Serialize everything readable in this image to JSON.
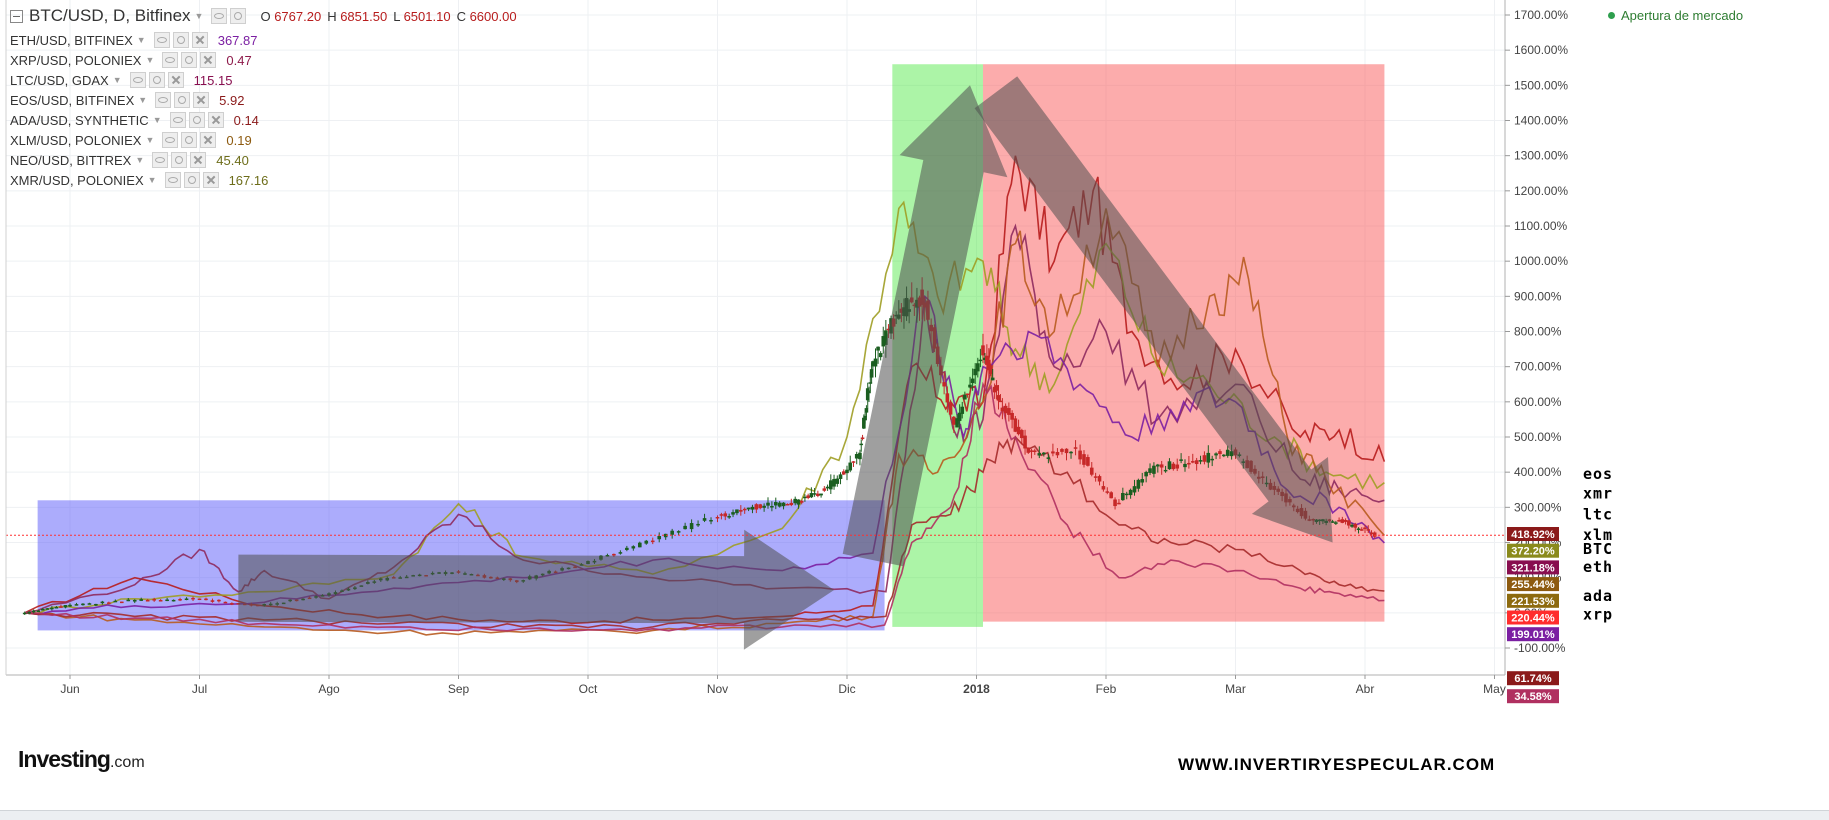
{
  "legend": {
    "main": {
      "symbol": "BTC/USD, D, Bitfinex",
      "ohlc": [
        {
          "k": "O",
          "v": "6767.20"
        },
        {
          "k": "H",
          "v": "6851.50"
        },
        {
          "k": "L",
          "v": "6501.10"
        },
        {
          "k": "C",
          "v": "6600.00"
        }
      ]
    },
    "compare": [
      {
        "symbol": "ETH/USD, BITFINEX",
        "value": "367.87",
        "color": "#7b1fa2"
      },
      {
        "symbol": "XRP/USD, POLONIEX",
        "value": "0.47",
        "color": "#8e1a4a"
      },
      {
        "symbol": "LTC/USD, GDAX",
        "value": "115.15",
        "color": "#880e4f"
      },
      {
        "symbol": "EOS/USD, BITFINEX",
        "value": "5.92",
        "color": "#8b1a1a"
      },
      {
        "symbol": "ADA/USD, SYNTHETIC",
        "value": "0.14",
        "color": "#8b1a1a"
      },
      {
        "symbol": "XLM/USD, POLONIEX",
        "value": "0.19",
        "color": "#8d5a0f"
      },
      {
        "symbol": "NEO/USD, BITTREX",
        "value": "45.40",
        "color": "#6d6d1a"
      },
      {
        "symbol": "XMR/USD, POLONIEX",
        "value": "167.16",
        "color": "#6d6d1a"
      }
    ]
  },
  "market_status": "Apertura de mercado",
  "logo": {
    "main": "Investing",
    "suffix": ".com"
  },
  "watermark": "WWW.INVERTIRYESPECULAR.COM",
  "chart_data": {
    "type": "line",
    "title": "BTC/USD, D, Bitfinex",
    "y_axis": {
      "min": -100,
      "max": 1700,
      "step": 100,
      "unit": "%",
      "side": "right"
    },
    "x_axis": {
      "labels": [
        "Jun",
        "Jul",
        "Ago",
        "Sep",
        "Oct",
        "Nov",
        "Dic",
        "2018",
        "Feb",
        "Mar",
        "Abr",
        "May"
      ]
    },
    "x_start": 0,
    "x_end": 11.3,
    "grid": true,
    "current_price_line": 220.44,
    "colors": {
      "btc_up": "#1b5e20",
      "btc_down": "#c62828",
      "zone_consolidation": "rgba(90,90,250,0.5)",
      "zone_bull": "rgba(70,230,60,0.45)",
      "zone_bear": "rgba(250,90,90,0.5)",
      "arrows": "rgba(80,80,80,0.55)"
    },
    "zones": [
      {
        "name": "consolidation",
        "x0": -0.25,
        "x1": 6.29,
        "y0": -50,
        "y1": 320
      },
      {
        "name": "bull",
        "x0": 6.35,
        "x1": 7.05,
        "y0": -40,
        "y1": 1560
      },
      {
        "name": "bear",
        "x0": 7.05,
        "x1": 10.15,
        "y0": -25,
        "y1": 1560
      }
    ],
    "arrows": [
      {
        "from": [
          1.3,
          70
        ],
        "to": [
          5.9,
          65
        ],
        "width": 120
      },
      {
        "from": [
          6.2,
          150
        ],
        "to": [
          6.95,
          1500
        ],
        "width": 110
      },
      {
        "from": [
          7.15,
          1480
        ],
        "to": [
          9.75,
          200
        ],
        "width": 95
      }
    ],
    "btc_candles": [
      {
        "x": -0.35,
        "close": 0
      },
      {
        "x": 0,
        "close": 20
      },
      {
        "x": 0.5,
        "close": 35
      },
      {
        "x": 1,
        "close": 40
      },
      {
        "x": 1.5,
        "close": 20
      },
      {
        "x": 2,
        "close": 50
      },
      {
        "x": 2.5,
        "close": 100
      },
      {
        "x": 3,
        "close": 115
      },
      {
        "x": 3.5,
        "close": 90
      },
      {
        "x": 4,
        "close": 140
      },
      {
        "x": 4.5,
        "close": 200
      },
      {
        "x": 5,
        "close": 270
      },
      {
        "x": 5.3,
        "close": 300
      },
      {
        "x": 5.6,
        "close": 310
      },
      {
        "x": 5.85,
        "close": 350
      },
      {
        "x": 6.1,
        "close": 440
      },
      {
        "x": 6.2,
        "close": 700
      },
      {
        "x": 6.4,
        "close": 850
      },
      {
        "x": 6.6,
        "close": 900
      },
      {
        "x": 6.85,
        "close": 530
      },
      {
        "x": 7.05,
        "close": 740
      },
      {
        "x": 7.2,
        "close": 600
      },
      {
        "x": 7.45,
        "close": 450
      },
      {
        "x": 7.8,
        "close": 460
      },
      {
        "x": 8.1,
        "close": 310
      },
      {
        "x": 8.4,
        "close": 410
      },
      {
        "x": 8.7,
        "close": 430
      },
      {
        "x": 9,
        "close": 460
      },
      {
        "x": 9.3,
        "close": 360
      },
      {
        "x": 9.6,
        "close": 260
      },
      {
        "x": 9.85,
        "close": 260
      },
      {
        "x": 10.1,
        "close": 220
      }
    ],
    "series": [
      {
        "label": "eos",
        "color": "#b71c1c",
        "last": 418.92,
        "label_y": 395,
        "points": [
          [
            -0.35,
            0
          ],
          [
            0.5,
            100
          ],
          [
            1.5,
            20
          ],
          [
            2.5,
            -10
          ],
          [
            3.5,
            -25
          ],
          [
            4.5,
            -20
          ],
          [
            5.5,
            -10
          ],
          [
            6.2,
            20
          ],
          [
            6.5,
            700
          ],
          [
            6.8,
            600
          ],
          [
            7.05,
            600
          ],
          [
            7.3,
            1300
          ],
          [
            7.6,
            1000
          ],
          [
            7.9,
            1200
          ],
          [
            8.2,
            800
          ],
          [
            8.6,
            650
          ],
          [
            9,
            750
          ],
          [
            9.5,
            500
          ],
          [
            9.8,
            520
          ],
          [
            10.15,
            430
          ]
        ]
      },
      {
        "label": "xmr",
        "color": "#9e9d24",
        "last": 372.2,
        "label_y": 340,
        "points": [
          [
            -0.35,
            0
          ],
          [
            0.5,
            40
          ],
          [
            1.5,
            60
          ],
          [
            2.5,
            110
          ],
          [
            3,
            310
          ],
          [
            3.5,
            160
          ],
          [
            4.5,
            110
          ],
          [
            5.5,
            240
          ],
          [
            6,
            500
          ],
          [
            6.4,
            1150
          ],
          [
            6.7,
            900
          ],
          [
            7.05,
            1000
          ],
          [
            7.3,
            750
          ],
          [
            7.6,
            650
          ],
          [
            8,
            1050
          ],
          [
            8.4,
            700
          ],
          [
            8.8,
            650
          ],
          [
            9.3,
            500
          ],
          [
            9.7,
            400
          ],
          [
            10.15,
            370
          ]
        ]
      },
      {
        "label": "ltc",
        "color": "#8e2a5e",
        "last": 321.18,
        "label_y": 280,
        "points": [
          [
            -0.35,
            0
          ],
          [
            0.5,
            80
          ],
          [
            1,
            180
          ],
          [
            1.3,
            60
          ],
          [
            1.5,
            120
          ],
          [
            2,
            40
          ],
          [
            2.5,
            130
          ],
          [
            3,
            280
          ],
          [
            3.5,
            150
          ],
          [
            4.5,
            100
          ],
          [
            5.5,
            70
          ],
          [
            6.3,
            60
          ],
          [
            6.6,
            900
          ],
          [
            6.85,
            500
          ],
          [
            7.05,
            550
          ],
          [
            7.3,
            1100
          ],
          [
            7.6,
            700
          ],
          [
            8,
            800
          ],
          [
            8.4,
            550
          ],
          [
            9,
            650
          ],
          [
            9.5,
            380
          ],
          [
            9.8,
            350
          ],
          [
            10.15,
            320
          ]
        ]
      },
      {
        "label": "xlm",
        "color": "#b85b1f",
        "last": 221.53,
        "label_y": 222,
        "points": [
          [
            -0.35,
            0
          ],
          [
            0.5,
            -20
          ],
          [
            1.5,
            -40
          ],
          [
            2.5,
            -55
          ],
          [
            3.5,
            -55
          ],
          [
            4.5,
            -50
          ],
          [
            5.5,
            -30
          ],
          [
            6.2,
            -10
          ],
          [
            6.4,
            450
          ],
          [
            6.7,
            400
          ],
          [
            7.05,
            600
          ],
          [
            7.3,
            1050
          ],
          [
            7.6,
            800
          ],
          [
            8,
            1150
          ],
          [
            8.4,
            700
          ],
          [
            8.8,
            900
          ],
          [
            9.1,
            950
          ],
          [
            9.4,
            500
          ],
          [
            9.7,
            380
          ],
          [
            10.15,
            220
          ]
        ]
      },
      {
        "label": "BTC",
        "color": "#555555",
        "last": 220.44,
        "label_y": 182,
        "points": [
          [
            -0.35,
            0
          ],
          [
            0.5,
            30
          ],
          [
            1.5,
            20
          ],
          [
            2.5,
            100
          ],
          [
            3.5,
            100
          ],
          [
            4.5,
            200
          ],
          [
            5.5,
            310
          ],
          [
            6.1,
            440
          ],
          [
            6.4,
            850
          ],
          [
            6.85,
            530
          ],
          [
            7.05,
            740
          ],
          [
            7.45,
            450
          ],
          [
            8.1,
            310
          ],
          [
            8.7,
            430
          ],
          [
            9.3,
            360
          ],
          [
            9.85,
            260
          ],
          [
            10.15,
            220
          ]
        ]
      },
      {
        "label": "eth",
        "color": "#7b1fa2",
        "last": 199.01,
        "label_y": 130,
        "points": [
          [
            -0.35,
            0
          ],
          [
            0.5,
            20
          ],
          [
            1.5,
            30
          ],
          [
            2.5,
            70
          ],
          [
            3.5,
            100
          ],
          [
            4.5,
            150
          ],
          [
            5.5,
            120
          ],
          [
            6.2,
            170
          ],
          [
            6.6,
            900
          ],
          [
            6.9,
            500
          ],
          [
            7.05,
            700
          ],
          [
            7.4,
            800
          ],
          [
            7.8,
            650
          ],
          [
            8.2,
            500
          ],
          [
            8.6,
            600
          ],
          [
            9,
            600
          ],
          [
            9.4,
            350
          ],
          [
            9.8,
            300
          ],
          [
            10.15,
            199
          ]
        ]
      },
      {
        "label": "ada",
        "color": "#a52a2a",
        "last": 61.74,
        "label_y": 48,
        "points": [
          [
            -0.35,
            0
          ],
          [
            0.5,
            -10
          ],
          [
            1.5,
            -20
          ],
          [
            2.5,
            -30
          ],
          [
            3.5,
            -40
          ],
          [
            4.5,
            -40
          ],
          [
            5.5,
            -20
          ],
          [
            6.3,
            -10
          ],
          [
            6.5,
            250
          ],
          [
            6.8,
            280
          ],
          [
            7.05,
            400
          ],
          [
            7.3,
            500
          ],
          [
            7.7,
            400
          ],
          [
            8.1,
            250
          ],
          [
            8.5,
            200
          ],
          [
            9,
            180
          ],
          [
            9.5,
            120
          ],
          [
            9.8,
            80
          ],
          [
            10.15,
            62
          ]
        ]
      },
      {
        "label": "xrp",
        "color": "#b03060",
        "last": 34.58,
        "label_y": -5,
        "points": [
          [
            -0.35,
            0
          ],
          [
            0.5,
            -15
          ],
          [
            1.5,
            -30
          ],
          [
            2.5,
            -40
          ],
          [
            3.5,
            -45
          ],
          [
            4.5,
            -45
          ],
          [
            5.5,
            -40
          ],
          [
            6.29,
            -35
          ],
          [
            6.5,
            200
          ],
          [
            6.8,
            300
          ],
          [
            7.05,
            650
          ],
          [
            7.3,
            500
          ],
          [
            7.7,
            250
          ],
          [
            8.1,
            100
          ],
          [
            8.5,
            150
          ],
          [
            9,
            120
          ],
          [
            9.5,
            70
          ],
          [
            9.8,
            55
          ],
          [
            10.15,
            35
          ]
        ]
      }
    ],
    "price_badges": [
      {
        "text": "418.92%",
        "color": "#8b1a1a"
      },
      {
        "text": "372.20%",
        "color": "#8a8a1c"
      },
      {
        "text": "321.18%",
        "color": "#880e4f"
      },
      {
        "text": "255.44%",
        "color": "#8d5a0f"
      },
      {
        "text": "221.53%",
        "color": "#8d6a0f"
      },
      {
        "text": "220.44%",
        "color": "#ff2d2d"
      },
      {
        "text": "199.01%",
        "color": "#7b1fa2"
      },
      {
        "text": "61.74%",
        "color": "#8b1a1a"
      },
      {
        "text": "34.58%",
        "color": "#b03060"
      }
    ]
  }
}
